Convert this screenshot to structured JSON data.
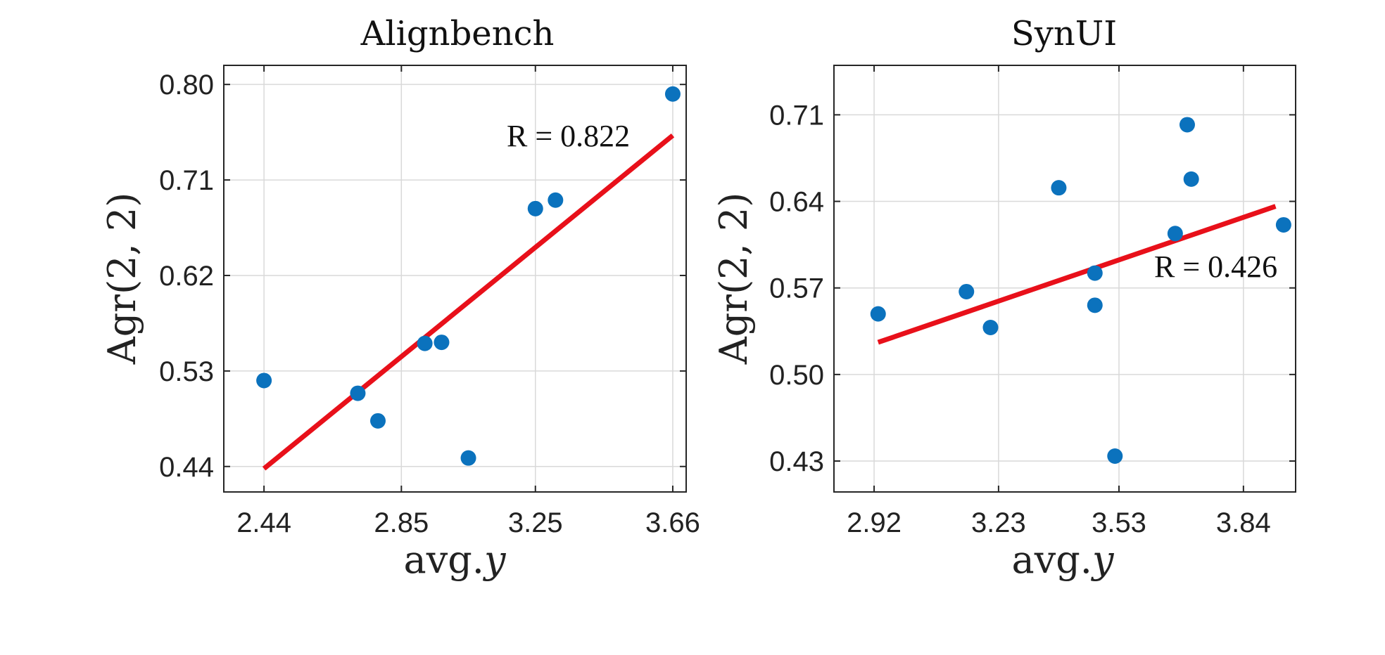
{
  "chart_data": [
    {
      "type": "scatter",
      "title": "Alignbench",
      "xlabel": "avg.",
      "xlabel_var": "y",
      "ylabel": "Agr(2, 2)",
      "xlim": [
        2.32,
        3.7
      ],
      "ylim": [
        0.416,
        0.818
      ],
      "xticks": [
        "2.44",
        "2.85",
        "3.25",
        "3.66"
      ],
      "yticks": [
        "0.80",
        "0.71",
        "0.62",
        "0.53",
        "0.44"
      ],
      "grid": true,
      "points": [
        {
          "x": 2.44,
          "y": 0.521
        },
        {
          "x": 2.72,
          "y": 0.509
        },
        {
          "x": 2.78,
          "y": 0.483
        },
        {
          "x": 2.92,
          "y": 0.556
        },
        {
          "x": 2.97,
          "y": 0.557
        },
        {
          "x": 3.05,
          "y": 0.448
        },
        {
          "x": 3.25,
          "y": 0.683
        },
        {
          "x": 3.31,
          "y": 0.691
        },
        {
          "x": 3.66,
          "y": 0.791
        }
      ],
      "fit_line": {
        "x": [
          2.44,
          3.66
        ],
        "y": [
          0.438,
          0.752
        ]
      },
      "annotation": "R = 0.822"
    },
    {
      "type": "scatter",
      "title": "SynUI",
      "xlabel": "avg.",
      "xlabel_var": "y",
      "ylabel": "Agr(2, 2)",
      "xlim": [
        2.82,
        3.97
      ],
      "ylim": [
        0.405,
        0.75
      ],
      "xticks": [
        "2.92",
        "3.23",
        "3.53",
        "3.84"
      ],
      "yticks": [
        "0.71",
        "0.64",
        "0.57",
        "0.50",
        "0.43"
      ],
      "grid": true,
      "points": [
        {
          "x": 2.93,
          "y": 0.549
        },
        {
          "x": 3.15,
          "y": 0.567
        },
        {
          "x": 3.21,
          "y": 0.538
        },
        {
          "x": 3.38,
          "y": 0.651
        },
        {
          "x": 3.47,
          "y": 0.582
        },
        {
          "x": 3.47,
          "y": 0.556
        },
        {
          "x": 3.52,
          "y": 0.434
        },
        {
          "x": 3.67,
          "y": 0.614
        },
        {
          "x": 3.7,
          "y": 0.702
        },
        {
          "x": 3.71,
          "y": 0.658
        },
        {
          "x": 3.94,
          "y": 0.621
        }
      ],
      "fit_line": {
        "x": [
          2.93,
          3.92
        ],
        "y": [
          0.526,
          0.636
        ]
      },
      "annotation": "R = 0.426"
    }
  ]
}
